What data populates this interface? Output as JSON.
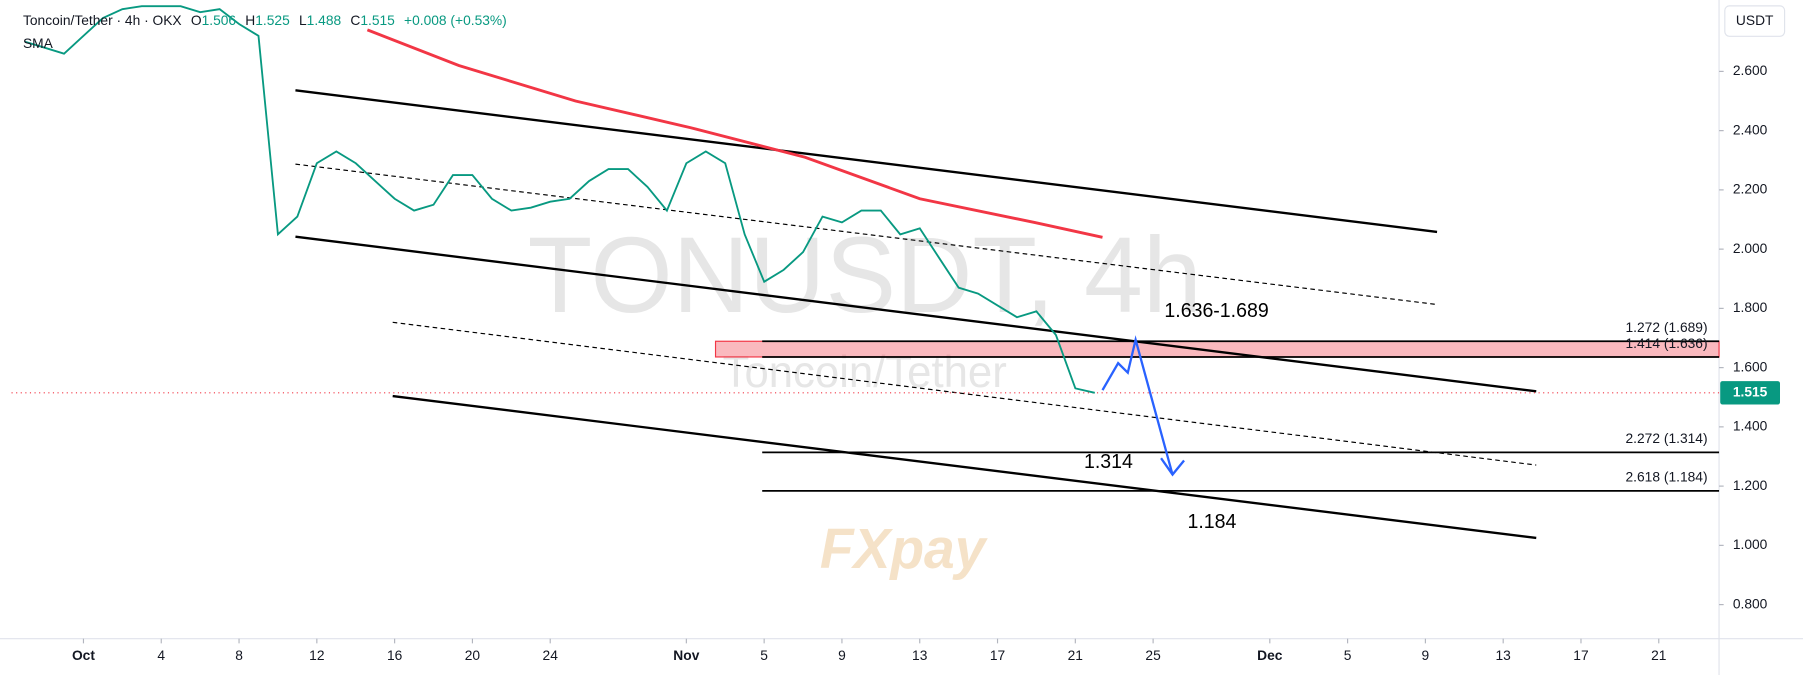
{
  "chart_data": {
    "type": "line",
    "header": {
      "symbol": "Toncoin/Tether · 4h · OKX",
      "ohlc": [
        {
          "key": "O",
          "value": 1.506
        },
        {
          "key": "H",
          "value": 1.525
        },
        {
          "key": "L",
          "value": 1.488
        },
        {
          "key": "C",
          "value": 1.515
        }
      ],
      "change": "+0.008 (+0.53%)",
      "indicator": "SMA"
    },
    "watermark": {
      "symbol": "TONUSDT, 4h",
      "name": "Toncoin/Tether",
      "logo": "FXpay"
    },
    "currency": "USDT",
    "x": [
      -3,
      -2,
      -1,
      0,
      1,
      2,
      3,
      4,
      5,
      6,
      7,
      8,
      9,
      10,
      11,
      12,
      13,
      14,
      15,
      16,
      17,
      18,
      19,
      20,
      21,
      22,
      23,
      24,
      25,
      26,
      27,
      28,
      29,
      30,
      31,
      32,
      33,
      34,
      35,
      36,
      37,
      38,
      39,
      40,
      41,
      42,
      43,
      44,
      45,
      46,
      47,
      48,
      49,
      50,
      51,
      52
    ],
    "series": [
      {
        "name": "Close",
        "color": "#089981",
        "values": [
          2.7,
          2.68,
          2.66,
          2.72,
          2.78,
          2.81,
          2.82,
          2.82,
          2.82,
          2.8,
          2.81,
          2.76,
          2.72,
          2.05,
          2.11,
          2.29,
          2.33,
          2.29,
          2.23,
          2.17,
          2.13,
          2.15,
          2.25,
          2.25,
          2.17,
          2.13,
          2.14,
          2.16,
          2.17,
          2.23,
          2.27,
          2.27,
          2.21,
          2.13,
          2.29,
          2.33,
          2.29,
          2.05,
          1.89,
          1.93,
          1.99,
          2.11,
          2.09,
          2.13,
          2.13,
          2.05,
          2.07,
          1.97,
          1.87,
          1.85,
          1.81,
          1.77,
          1.79,
          1.71,
          1.53,
          1.515
        ]
      },
      {
        "name": "SMA",
        "color": "#f23645",
        "x": [
          14.6,
          19.3,
          25.3,
          31.2,
          37.1,
          43,
          48.9,
          52.4
        ],
        "values": [
          2.74,
          2.62,
          2.5,
          2.41,
          2.31,
          2.17,
          2.09,
          2.04
        ]
      }
    ],
    "last_price": 1.515,
    "channels": [
      {
        "x": [
          10.9,
          69.6
        ],
        "y": [
          2.536,
          2.058
        ],
        "style": "solid"
      },
      {
        "x": [
          10.9,
          74.7
        ],
        "y": [
          2.042,
          1.52
        ],
        "style": "solid"
      },
      {
        "x": [
          10.9,
          69.6
        ],
        "y": [
          2.287,
          1.813
        ],
        "style": "dashed"
      },
      {
        "x": [
          15.9,
          74.7
        ],
        "y": [
          1.753,
          1.271
        ],
        "style": "dashed"
      },
      {
        "x": [
          15.9,
          74.7
        ],
        "y": [
          1.504,
          1.025
        ],
        "style": "solid"
      }
    ],
    "zone": {
      "x": [
        32.5,
        84.1
      ],
      "y": [
        1.636,
        1.689
      ]
    },
    "levels": [
      {
        "value": 1.689,
        "label": "1.272 (1.689)"
      },
      {
        "value": 1.636,
        "label": "1.414 (1.636)"
      },
      {
        "value": 1.314,
        "label": "2.272 (1.314)"
      },
      {
        "value": 1.184,
        "label": "2.618 (1.184)"
      }
    ],
    "levels_from": 34.9,
    "projection": {
      "color": "#2962ff",
      "x": [
        52.4,
        53.2,
        53.7,
        54.1,
        56.0
      ],
      "y": [
        1.524,
        1.615,
        1.583,
        1.694,
        1.239
      ]
    },
    "callouts": [
      "1.636-1.689",
      "1.314",
      "1.184"
    ],
    "xlim": [
      -3.7,
      84.1
    ],
    "ylim": [
      0.685,
      2.841
    ],
    "xticks": [
      {
        "value": 0,
        "label": "Oct"
      },
      4,
      8,
      12,
      16,
      20,
      24,
      {
        "value": 31,
        "label": "Nov"
      },
      {
        "value": 35,
        "label": "5"
      },
      {
        "value": 39,
        "label": "9"
      },
      {
        "value": 43,
        "label": "13"
      },
      {
        "value": 47,
        "label": "17"
      },
      {
        "value": 51,
        "label": "21"
      },
      {
        "value": 55,
        "label": "25"
      },
      {
        "value": 61,
        "label": "Dec"
      },
      {
        "value": 65,
        "label": "5"
      },
      {
        "value": 69,
        "label": "9"
      },
      {
        "value": 73,
        "label": "13"
      },
      {
        "value": 77,
        "label": "17"
      },
      {
        "value": 81,
        "label": "21"
      }
    ],
    "yticks": [
      {
        "value": 0.8,
        "label": "0.800"
      },
      {
        "value": 1.0,
        "label": "1.000"
      },
      {
        "value": 1.2,
        "label": "1.200"
      },
      {
        "value": 1.4,
        "label": "1.400"
      },
      {
        "value": 1.6,
        "label": "1.600"
      },
      {
        "value": 1.8,
        "label": "1.800"
      },
      {
        "value": 2.0,
        "label": "2.000"
      },
      {
        "value": 2.2,
        "label": "2.200"
      },
      {
        "value": 2.4,
        "label": "2.400"
      },
      {
        "value": 2.6,
        "label": "2.600"
      }
    ]
  }
}
